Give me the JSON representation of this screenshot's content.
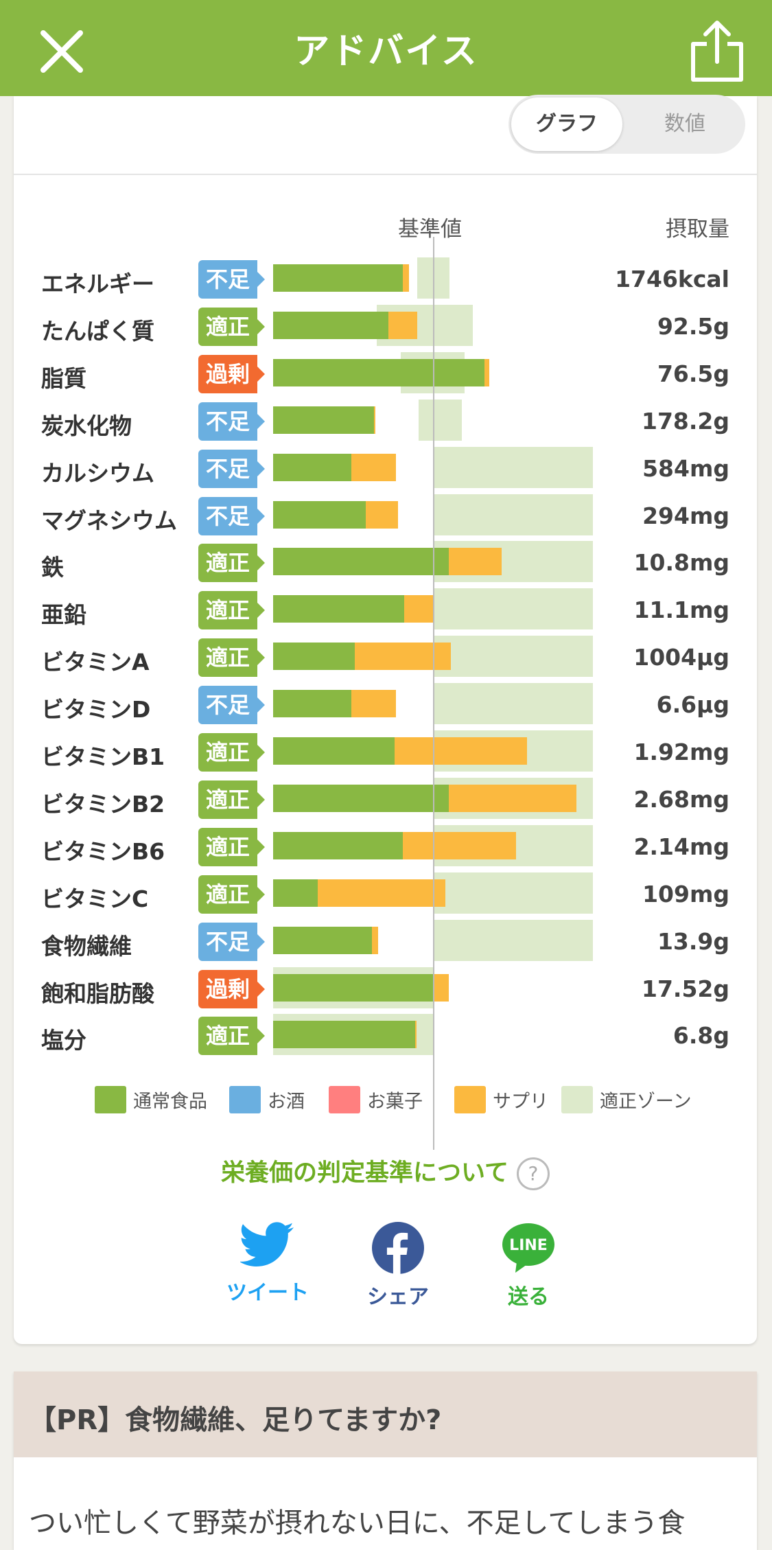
{
  "header": {
    "title": "アドバイス",
    "close_icon": "close-icon",
    "share_icon": "share-icon"
  },
  "toggle": {
    "graph_label": "グラフ",
    "value_label": "数値",
    "selected": "グラフ"
  },
  "columns": {
    "baseline": "基準値",
    "intake": "摂取量"
  },
  "colors": {
    "brand": "#89b843",
    "shortage": "#6aafe0",
    "adequate": "#89b843",
    "excess": "#f26a30",
    "food": "#89b843",
    "supplement": "#fbb93f",
    "zone": "#ddeacb"
  },
  "nutrients": [
    {
      "name": "エネルギー",
      "status": "不足",
      "value": "1746kcal"
    },
    {
      "name": "たんぱく質",
      "status": "適正",
      "value": "92.5g"
    },
    {
      "name": "脂質",
      "status": "過剰",
      "value": "76.5g"
    },
    {
      "name": "炭水化物",
      "status": "不足",
      "value": "178.2g"
    },
    {
      "name": "カルシウム",
      "status": "不足",
      "value": "584mg"
    },
    {
      "name": "マグネシウム",
      "status": "不足",
      "value": "294mg"
    },
    {
      "name": "鉄",
      "status": "適正",
      "value": "10.8mg"
    },
    {
      "name": "亜鉛",
      "status": "適正",
      "value": "11.1mg"
    },
    {
      "name": "ビタミンA",
      "status": "適正",
      "value": "1004µg"
    },
    {
      "name": "ビタミンD",
      "status": "不足",
      "value": "6.6µg"
    },
    {
      "name": "ビタミンB1",
      "status": "適正",
      "value": "1.92mg"
    },
    {
      "name": "ビタミンB2",
      "status": "適正",
      "value": "2.68mg"
    },
    {
      "name": "ビタミンB6",
      "status": "適正",
      "value": "2.14mg"
    },
    {
      "name": "ビタミンC",
      "status": "適正",
      "value": "109mg"
    },
    {
      "name": "食物繊維",
      "status": "不足",
      "value": "13.9g"
    },
    {
      "name": "飽和脂肪酸",
      "status": "過剰",
      "value": "17.52g"
    },
    {
      "name": "塩分",
      "status": "適正",
      "value": "6.8g"
    }
  ],
  "chart_data": {
    "type": "bar",
    "stacked": true,
    "orientation": "horizontal",
    "reference_label": "基準値",
    "categories": [
      "エネルギー",
      "たんぱく質",
      "脂質",
      "炭水化物",
      "カルシウム",
      "マグネシウム",
      "鉄",
      "亜鉛",
      "ビタミンA",
      "ビタミンD",
      "ビタミンB1",
      "ビタミンB2",
      "ビタミンB6",
      "ビタミンC",
      "食物繊維",
      "飽和脂肪酸",
      "塩分"
    ],
    "unit": "percent of 基準値",
    "series": [
      {
        "name": "通常食品",
        "color": "#89b843",
        "values": [
          81,
          72,
          132,
          63,
          49,
          58,
          110,
          82,
          51,
          49,
          76,
          110,
          81,
          28,
          62,
          101,
          89
        ]
      },
      {
        "name": "お酒",
        "color": "#6aafe0",
        "values": [
          0,
          0,
          0,
          0,
          0,
          0,
          0,
          0,
          0,
          0,
          0,
          0,
          0,
          0,
          0,
          0,
          0
        ]
      },
      {
        "name": "お菓子",
        "color": "#ff7f7f",
        "values": [
          0,
          0,
          0,
          0,
          0,
          0,
          0,
          0,
          0,
          0,
          0,
          0,
          0,
          0,
          0,
          0,
          0
        ]
      },
      {
        "name": "サプリ",
        "color": "#fbb93f",
        "values": [
          4,
          18,
          3,
          1,
          28,
          20,
          33,
          18,
          60,
          28,
          83,
          80,
          71,
          80,
          4,
          9,
          1
        ]
      }
    ],
    "adequate_zone": [
      [
        90,
        110
      ],
      [
        65,
        125
      ],
      [
        80,
        120
      ],
      [
        91,
        118
      ],
      [
        100,
        200
      ],
      [
        100,
        200
      ],
      [
        100,
        200
      ],
      [
        100,
        200
      ],
      [
        100,
        200
      ],
      [
        100,
        200
      ],
      [
        100,
        200
      ],
      [
        100,
        200
      ],
      [
        100,
        200
      ],
      [
        100,
        200
      ],
      [
        100,
        200
      ],
      [
        0,
        100
      ],
      [
        0,
        100
      ]
    ],
    "legend": [
      "通常食品",
      "お酒",
      "お菓子",
      "サプリ",
      "適正ゾーン"
    ],
    "legend_colors": [
      "#89b843",
      "#6aafe0",
      "#ff7f7f",
      "#fbb93f",
      "#ddeacb"
    ],
    "legend_position": "bottom"
  },
  "criteria_link": {
    "label": "栄養価の判定基準について",
    "help_icon": "?"
  },
  "share": {
    "twitter": {
      "label": "ツイート",
      "icon": "twitter-icon",
      "color": "#1da1f2"
    },
    "facebook": {
      "label": "シェア",
      "icon": "facebook-icon",
      "color": "#3b5998"
    },
    "line": {
      "label": "送る",
      "icon": "line-icon",
      "color": "#3ab13a",
      "icon_text": "LINE"
    }
  },
  "pr": {
    "title": "【PR】食物繊維、足りてますか?",
    "body": "つい忙しくて野菜が摂れない日に、不足してしまう食"
  }
}
